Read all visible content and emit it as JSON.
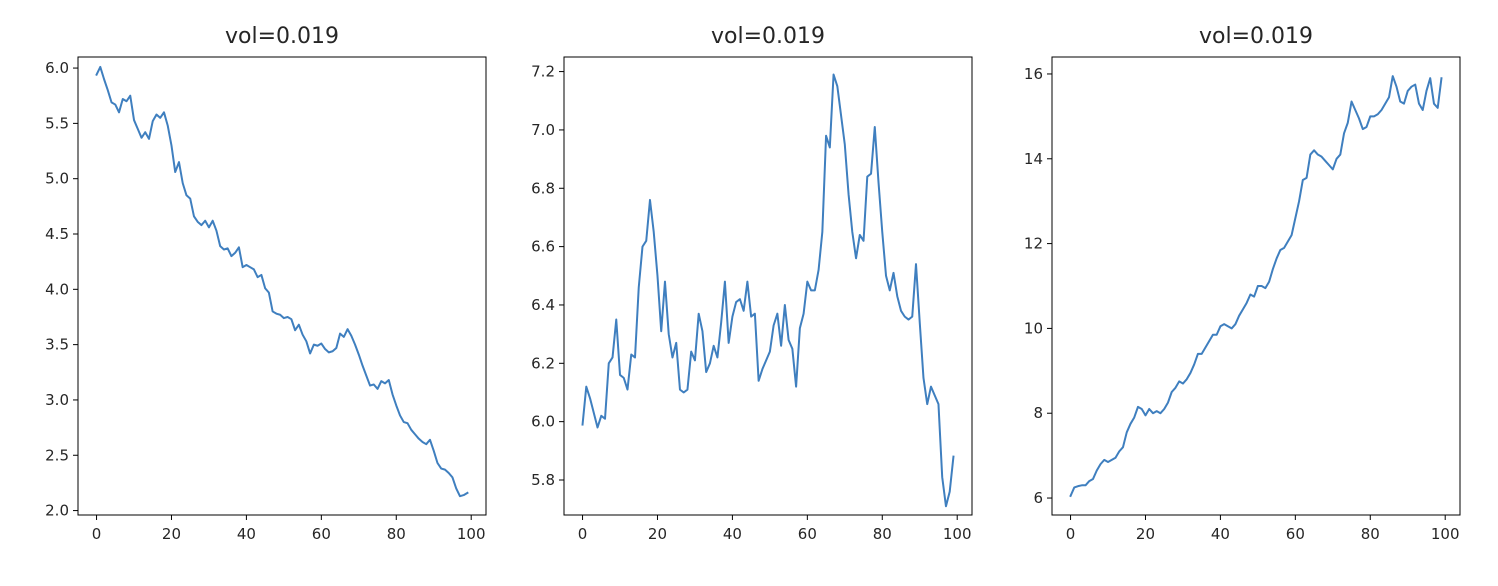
{
  "colors": {
    "line": "#3f7fbf",
    "axes": "#000000",
    "text": "#262626"
  },
  "chart_data": [
    {
      "type": "line",
      "title": "vol=0.019",
      "xlabel": "",
      "ylabel": "",
      "xlim": [
        -4.95,
        103.95
      ],
      "ylim": [
        1.96,
        6.1
      ],
      "xticks": [
        0,
        20,
        40,
        60,
        80,
        100
      ],
      "xtick_labels": [
        "0",
        "20",
        "40",
        "60",
        "80",
        "100"
      ],
      "yticks": [
        2.0,
        2.5,
        3.0,
        3.5,
        4.0,
        4.5,
        5.0,
        5.5,
        6.0
      ],
      "ytick_labels": [
        "2.0",
        "2.5",
        "3.0",
        "3.5",
        "4.0",
        "4.5",
        "5.0",
        "5.5",
        "6.0"
      ],
      "grid": false,
      "series": [
        {
          "x": [
            0,
            1,
            2,
            3,
            4,
            5,
            6,
            7,
            8,
            9,
            10,
            11,
            12,
            13,
            14,
            15,
            16,
            17,
            18,
            19,
            20,
            21,
            22,
            23,
            24,
            25,
            26,
            27,
            28,
            29,
            30,
            31,
            32,
            33,
            34,
            35,
            36,
            37,
            38,
            39,
            40,
            41,
            42,
            43,
            44,
            45,
            46,
            47,
            48,
            49,
            50,
            51,
            52,
            53,
            54,
            55,
            56,
            57,
            58,
            59,
            60,
            61,
            62,
            63,
            64,
            65,
            66,
            67,
            68,
            69,
            70,
            71,
            72,
            73,
            74,
            75,
            76,
            77,
            78,
            79,
            80,
            81,
            82,
            83,
            84,
            85,
            86,
            87,
            88,
            89,
            90,
            91,
            92,
            93,
            94,
            95,
            96,
            97,
            98,
            99
          ],
          "values": [
            5.94,
            6.01,
            5.9,
            5.8,
            5.69,
            5.67,
            5.6,
            5.72,
            5.7,
            5.75,
            5.53,
            5.45,
            5.37,
            5.42,
            5.36,
            5.52,
            5.58,
            5.55,
            5.6,
            5.48,
            5.3,
            5.06,
            5.15,
            4.96,
            4.85,
            4.82,
            4.66,
            4.61,
            4.58,
            4.62,
            4.56,
            4.62,
            4.53,
            4.39,
            4.36,
            4.37,
            4.3,
            4.33,
            4.38,
            4.2,
            4.22,
            4.2,
            4.18,
            4.11,
            4.13,
            4.01,
            3.97,
            3.8,
            3.78,
            3.77,
            3.74,
            3.75,
            3.73,
            3.63,
            3.68,
            3.59,
            3.53,
            3.42,
            3.5,
            3.49,
            3.51,
            3.46,
            3.43,
            3.44,
            3.47,
            3.6,
            3.57,
            3.64,
            3.58,
            3.5,
            3.41,
            3.31,
            3.22,
            3.13,
            3.14,
            3.1,
            3.17,
            3.15,
            3.18,
            3.05,
            2.95,
            2.86,
            2.8,
            2.79,
            2.73,
            2.69,
            2.65,
            2.62,
            2.6,
            2.64,
            2.54,
            2.43,
            2.38,
            2.37,
            2.34,
            2.3,
            2.2,
            2.13,
            2.14,
            2.16
          ]
        }
      ]
    },
    {
      "type": "line",
      "title": "vol=0.019",
      "xlabel": "",
      "ylabel": "",
      "xlim": [
        -4.95,
        103.95
      ],
      "ylim": [
        5.68,
        7.25
      ],
      "xticks": [
        0,
        20,
        40,
        60,
        80,
        100
      ],
      "xtick_labels": [
        "0",
        "20",
        "40",
        "60",
        "80",
        "100"
      ],
      "yticks": [
        5.8,
        6.0,
        6.2,
        6.4,
        6.6,
        6.8,
        7.0,
        7.2
      ],
      "ytick_labels": [
        "5.8",
        "6.0",
        "6.2",
        "6.4",
        "6.6",
        "6.8",
        "7.0",
        "7.2"
      ],
      "grid": false,
      "series": [
        {
          "x": [
            0,
            1,
            2,
            3,
            4,
            5,
            6,
            7,
            8,
            9,
            10,
            11,
            12,
            13,
            14,
            15,
            16,
            17,
            18,
            19,
            20,
            21,
            22,
            23,
            24,
            25,
            26,
            27,
            28,
            29,
            30,
            31,
            32,
            33,
            34,
            35,
            36,
            37,
            38,
            39,
            40,
            41,
            42,
            43,
            44,
            45,
            46,
            47,
            48,
            49,
            50,
            51,
            52,
            53,
            54,
            55,
            56,
            57,
            58,
            59,
            60,
            61,
            62,
            63,
            64,
            65,
            66,
            67,
            68,
            69,
            70,
            71,
            72,
            73,
            74,
            75,
            76,
            77,
            78,
            79,
            80,
            81,
            82,
            83,
            84,
            85,
            86,
            87,
            88,
            89,
            90,
            91,
            92,
            93,
            94,
            95,
            96,
            97,
            98,
            99
          ],
          "values": [
            5.99,
            6.12,
            6.08,
            6.03,
            5.98,
            6.02,
            6.01,
            6.2,
            6.22,
            6.35,
            6.16,
            6.15,
            6.11,
            6.23,
            6.22,
            6.46,
            6.6,
            6.62,
            6.76,
            6.65,
            6.5,
            6.31,
            6.48,
            6.3,
            6.22,
            6.27,
            6.11,
            6.1,
            6.11,
            6.24,
            6.21,
            6.37,
            6.31,
            6.17,
            6.2,
            6.26,
            6.22,
            6.34,
            6.48,
            6.27,
            6.36,
            6.41,
            6.42,
            6.38,
            6.48,
            6.36,
            6.37,
            6.14,
            6.18,
            6.21,
            6.24,
            6.33,
            6.37,
            6.26,
            6.4,
            6.28,
            6.25,
            6.12,
            6.32,
            6.37,
            6.48,
            6.45,
            6.45,
            6.52,
            6.65,
            6.98,
            6.94,
            7.19,
            7.15,
            7.05,
            6.95,
            6.78,
            6.65,
            6.56,
            6.64,
            6.62,
            6.84,
            6.85,
            7.01,
            6.82,
            6.65,
            6.5,
            6.45,
            6.51,
            6.43,
            6.38,
            6.36,
            6.35,
            6.36,
            6.54,
            6.34,
            6.15,
            6.06,
            6.12,
            6.09,
            6.06,
            5.81,
            5.71,
            5.76,
            5.88
          ]
        }
      ]
    },
    {
      "type": "line",
      "title": "vol=0.019",
      "xlabel": "",
      "ylabel": "",
      "xlim": [
        -4.95,
        103.95
      ],
      "ylim": [
        5.6,
        16.4
      ],
      "xticks": [
        0,
        20,
        40,
        60,
        80,
        100
      ],
      "xtick_labels": [
        "0",
        "20",
        "40",
        "60",
        "80",
        "100"
      ],
      "yticks": [
        6,
        8,
        10,
        12,
        14,
        16
      ],
      "ytick_labels": [
        "6",
        "8",
        "10",
        "12",
        "14",
        "16"
      ],
      "grid": false,
      "series": [
        {
          "x": [
            0,
            1,
            2,
            3,
            4,
            5,
            6,
            7,
            8,
            9,
            10,
            11,
            12,
            13,
            14,
            15,
            16,
            17,
            18,
            19,
            20,
            21,
            22,
            23,
            24,
            25,
            26,
            27,
            28,
            29,
            30,
            31,
            32,
            33,
            34,
            35,
            36,
            37,
            38,
            39,
            40,
            41,
            42,
            43,
            44,
            45,
            46,
            47,
            48,
            49,
            50,
            51,
            52,
            53,
            54,
            55,
            56,
            57,
            58,
            59,
            60,
            61,
            62,
            63,
            64,
            65,
            66,
            67,
            68,
            69,
            70,
            71,
            72,
            73,
            74,
            75,
            76,
            77,
            78,
            79,
            80,
            81,
            82,
            83,
            84,
            85,
            86,
            87,
            88,
            89,
            90,
            91,
            92,
            93,
            94,
            95,
            96,
            97,
            98,
            99
          ],
          "values": [
            6.05,
            6.25,
            6.28,
            6.3,
            6.3,
            6.4,
            6.45,
            6.65,
            6.8,
            6.9,
            6.85,
            6.9,
            6.95,
            7.1,
            7.2,
            7.55,
            7.75,
            7.9,
            8.15,
            8.1,
            7.95,
            8.1,
            8.0,
            8.05,
            8.0,
            8.1,
            8.25,
            8.5,
            8.6,
            8.75,
            8.7,
            8.8,
            8.95,
            9.15,
            9.4,
            9.4,
            9.55,
            9.7,
            9.85,
            9.85,
            10.05,
            10.1,
            10.05,
            10.0,
            10.1,
            10.3,
            10.45,
            10.6,
            10.8,
            10.75,
            11.0,
            11.0,
            10.95,
            11.1,
            11.4,
            11.65,
            11.85,
            11.9,
            12.05,
            12.2,
            12.6,
            13.0,
            13.5,
            13.55,
            14.1,
            14.2,
            14.1,
            14.05,
            13.95,
            13.85,
            13.75,
            14.0,
            14.1,
            14.6,
            14.85,
            15.35,
            15.15,
            14.95,
            14.7,
            14.75,
            15.0,
            15.0,
            15.05,
            15.15,
            15.3,
            15.45,
            15.95,
            15.7,
            15.35,
            15.3,
            15.6,
            15.7,
            15.75,
            15.3,
            15.15,
            15.6,
            15.9,
            15.3,
            15.2,
            15.9
          ]
        }
      ]
    }
  ]
}
